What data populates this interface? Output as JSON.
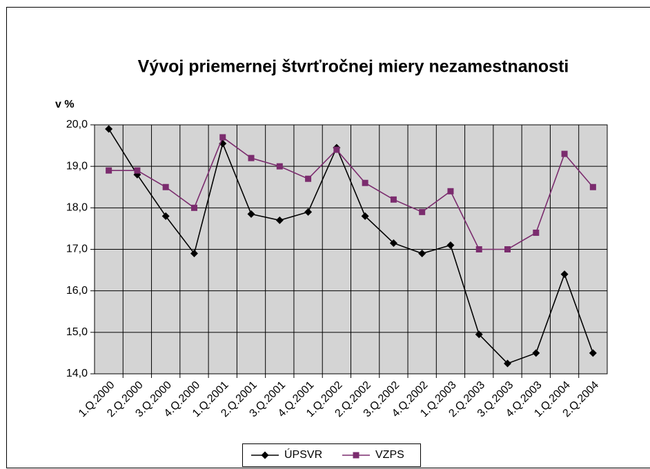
{
  "chart_data": {
    "type": "line",
    "title": "Vývoj priemernej štvrťročnej miery nezamestnanosti",
    "y_label": "v %",
    "categories": [
      "1.Q.2000",
      "2.Q.2000",
      "3.Q.2000",
      "4.Q.2000",
      "1.Q.2001",
      "2.Q.2001",
      "3.Q.2001",
      "4.Q.2001",
      "1.Q.2002",
      "2.Q.2002",
      "3.Q.2002",
      "4.Q.2002",
      "1.Q.2003",
      "2.Q.2003",
      "3.Q.2003",
      "4.Q.2003",
      "1.Q.2004",
      "2.Q.2004"
    ],
    "series": [
      {
        "name": "ÚPSVR",
        "color": "#000000",
        "marker": "diamond",
        "values": [
          19.9,
          18.8,
          17.8,
          16.9,
          19.55,
          17.85,
          17.7,
          17.9,
          19.45,
          17.8,
          17.15,
          16.9,
          17.1,
          14.95,
          14.25,
          14.5,
          16.4,
          14.5
        ]
      },
      {
        "name": "VZPS",
        "color": "#7b2c6e",
        "marker": "square",
        "values": [
          18.9,
          18.9,
          18.5,
          18.0,
          19.7,
          19.2,
          19.0,
          18.7,
          19.4,
          18.6,
          18.2,
          17.9,
          18.4,
          17.0,
          17.0,
          17.4,
          19.3,
          18.5
        ]
      }
    ],
    "ylim": [
      14,
      20
    ],
    "yticks": [
      {
        "value": 14,
        "label": "14,0"
      },
      {
        "value": 15,
        "label": "15,0"
      },
      {
        "value": 16,
        "label": "16,0"
      },
      {
        "value": 17,
        "label": "17,0"
      },
      {
        "value": 18,
        "label": "18,0"
      },
      {
        "value": 19,
        "label": "19,0"
      },
      {
        "value": 20,
        "label": "20,0"
      }
    ],
    "grid": true,
    "legend": "bottom"
  }
}
